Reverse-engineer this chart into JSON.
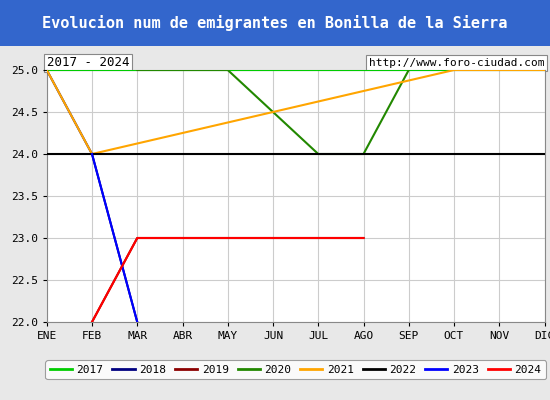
{
  "title": "Evolucion num de emigrantes en Bonilla de la Sierra",
  "title_bg": "#3366cc",
  "title_color": "#ffffff",
  "subtitle_left": "2017 - 2024",
  "subtitle_right": "http://www.foro-ciudad.com",
  "xlim": [
    0,
    11
  ],
  "ylim": [
    22.0,
    25.0
  ],
  "yticks": [
    22.0,
    22.5,
    23.0,
    23.5,
    24.0,
    24.5,
    25.0
  ],
  "xtick_labels": [
    "ENE",
    "FEB",
    "MAR",
    "ABR",
    "MAY",
    "JUN",
    "JUL",
    "AGO",
    "SEP",
    "OCT",
    "NOV",
    "DIC"
  ],
  "grid_color": "#cccccc",
  "bg_color": "#e8e8e8",
  "plot_bg": "#ffffff",
  "series": [
    {
      "label": "2017",
      "color": "#00cc00",
      "x": [
        0,
        11
      ],
      "y": [
        25,
        25
      ]
    },
    {
      "label": "2018",
      "color": "#000080",
      "x": [
        0,
        1,
        2
      ],
      "y": [
        25,
        24,
        22
      ]
    },
    {
      "label": "2019",
      "color": "#8b0000",
      "x": [
        1,
        2,
        7
      ],
      "y": [
        22,
        23,
        23
      ]
    },
    {
      "label": "2020",
      "color": "#228800",
      "x": [
        2,
        4,
        6,
        7,
        8
      ],
      "y": [
        25,
        25,
        24,
        24,
        25
      ]
    },
    {
      "label": "2021",
      "color": "#ffa500",
      "x": [
        0,
        1,
        9,
        11
      ],
      "y": [
        25,
        24,
        25,
        25
      ]
    },
    {
      "label": "2022",
      "color": "#000000",
      "x": [
        0,
        11
      ],
      "y": [
        24,
        24
      ]
    },
    {
      "label": "2023",
      "color": "#0000ff",
      "x": [
        1,
        2
      ],
      "y": [
        24,
        22
      ]
    },
    {
      "label": "2024",
      "color": "#ff0000",
      "x": [
        1,
        2,
        7
      ],
      "y": [
        22,
        23,
        23
      ]
    }
  ],
  "legend_colors": [
    "#00cc00",
    "#000080",
    "#8b0000",
    "#228800",
    "#ffa500",
    "#000000",
    "#0000ff",
    "#ff0000"
  ],
  "legend_labels": [
    "2017",
    "2018",
    "2019",
    "2020",
    "2021",
    "2022",
    "2023",
    "2024"
  ]
}
